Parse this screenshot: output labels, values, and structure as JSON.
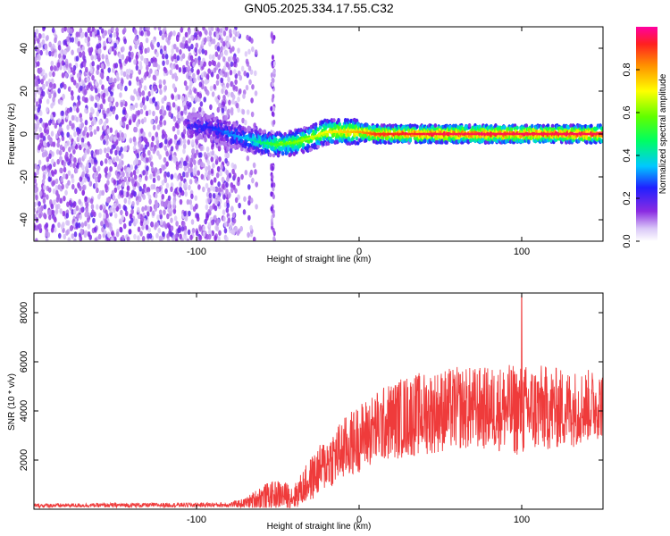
{
  "title": "GN05.2025.334.17.55.C32",
  "colors": {
    "snr_line": "#ef3b3b",
    "axis": "#000000",
    "background": "#ffffff"
  },
  "chart_data": [
    {
      "type": "heatmap",
      "name": "spectrogram",
      "xlabel": "Height of straight line (km)",
      "ylabel": "Frequency (Hz)",
      "xlim": [
        -200,
        150
      ],
      "ylim": [
        -50,
        50
      ],
      "xticks": [
        -100,
        0,
        100
      ],
      "yticks": [
        -40,
        -20,
        0,
        20,
        40
      ],
      "colorbar": {
        "label": "Normalized spectral amplitude",
        "range": [
          0,
          1
        ],
        "ticks": [
          0.0,
          0.2,
          0.4,
          0.6,
          0.8
        ],
        "tick_labels": [
          "0.0",
          "0.2",
          "0.4",
          "0.6",
          "0.8"
        ]
      },
      "description_regions": {
        "noise_region_km": [
          -200,
          -75
        ],
        "gap_column_km": [
          -54,
          -52
        ],
        "signal_ridge": {
          "x_km": [
            -105,
            -90,
            -80,
            -70,
            -60,
            -50,
            -40,
            -30,
            -20,
            -10,
            0,
            10,
            50,
            100,
            150
          ],
          "freq_hz": [
            4,
            3,
            0,
            -2,
            -4,
            -5,
            -4,
            -2,
            1,
            1,
            1,
            0,
            0,
            0,
            0
          ],
          "amplitude": [
            0.2,
            0.25,
            0.3,
            0.35,
            0.45,
            0.55,
            0.6,
            0.65,
            0.7,
            0.75,
            0.8,
            0.9,
            0.95,
            0.95,
            0.95
          ]
        }
      }
    },
    {
      "type": "line",
      "name": "snr",
      "xlabel": "Height of straight line (km)",
      "ylabel": "SNR (10 * v/v)",
      "xlim": [
        -200,
        150
      ],
      "ylim": [
        0,
        8800
      ],
      "xticks": [
        -100,
        0,
        100
      ],
      "yticks": [
        2000,
        4000,
        6000,
        8000
      ],
      "envelope": {
        "x_km": [
          -200,
          -80,
          -70,
          -60,
          -50,
          -40,
          -30,
          -20,
          -10,
          0,
          10,
          20,
          30,
          40,
          50,
          60,
          70,
          80,
          90,
          100,
          110,
          120,
          130,
          140,
          150
        ],
        "mean_snr": [
          150,
          180,
          250,
          500,
          600,
          500,
          1200,
          1900,
          2400,
          2900,
          3300,
          3600,
          3800,
          3900,
          4000,
          4100,
          4100,
          4100,
          4100,
          4000,
          4100,
          4100,
          4100,
          4200,
          4300
        ],
        "spread": [
          80,
          100,
          200,
          500,
          600,
          500,
          900,
          1100,
          1300,
          1400,
          1500,
          1600,
          1700,
          1700,
          1700,
          1700,
          1700,
          1700,
          1800,
          1900,
          1800,
          1700,
          1600,
          1500,
          1400
        ]
      },
      "peak": {
        "x_km": 100,
        "snr": 8700
      }
    }
  ]
}
